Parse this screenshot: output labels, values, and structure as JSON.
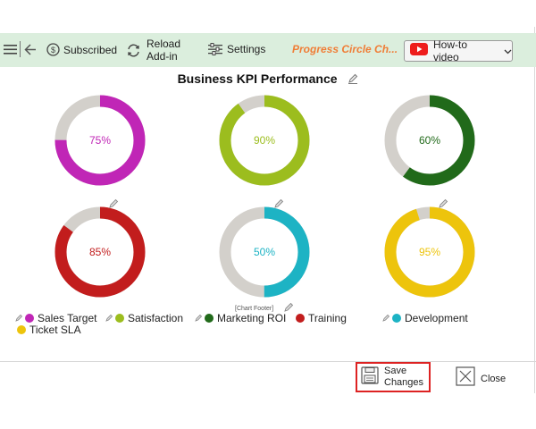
{
  "toolbar": {
    "subscribed_label": "Subscribed",
    "reload_label_1": "Reload",
    "reload_label_2": "Add-in",
    "settings_label": "Settings",
    "addin_title": "Progress Circle Ch...",
    "howto_label": "How-to video"
  },
  "chart_title": "Business KPI Performance",
  "chart_footer": "[Chart Footer]",
  "chart_data": {
    "type": "pie",
    "title": "Business KPI Performance",
    "series": [
      {
        "name": "Sales Target",
        "value": 75,
        "label": "75%",
        "color": "#c026b6"
      },
      {
        "name": "Satisfaction",
        "value": 90,
        "label": "90%",
        "color": "#9cbd1e"
      },
      {
        "name": "Marketing ROI",
        "value": 60,
        "label": "60%",
        "color": "#216a1a"
      },
      {
        "name": "Training",
        "value": 85,
        "label": "85%",
        "color": "#c21d1d"
      },
      {
        "name": "Development",
        "value": 50,
        "label": "50%",
        "color": "#1db3c4"
      },
      {
        "name": "Ticket SLA",
        "value": 95,
        "label": "95%",
        "color": "#edc40c"
      }
    ],
    "remainder_color": "#d3d0cb"
  },
  "legend": {
    "sales": "Sales Target",
    "satisfaction": "Satisfaction",
    "marketing": "Marketing ROI",
    "training": "Training",
    "development": "Development",
    "ticket": "Ticket SLA"
  },
  "buttons": {
    "save_1": "Save",
    "save_2": "Changes",
    "close": "Close"
  }
}
